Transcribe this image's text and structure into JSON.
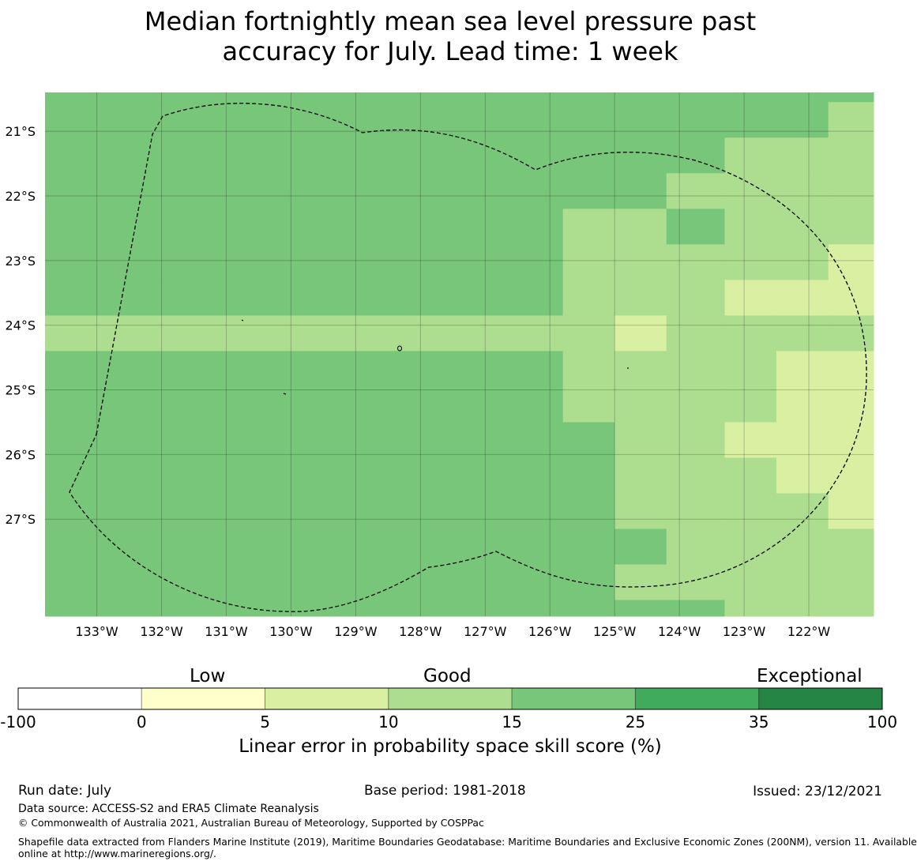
{
  "title": {
    "line1": "Median fortnightly mean sea level pressure past",
    "line2": "accuracy for July. Lead time: 1 week"
  },
  "map": {
    "lat_labels": [
      "21°S",
      "22°S",
      "23°S",
      "24°S",
      "25°S",
      "26°S",
      "27°S"
    ],
    "lon_labels": [
      "133°W",
      "132°W",
      "131°W",
      "130°W",
      "129°W",
      "128°W",
      "127°W",
      "126°W",
      "125°W",
      "124°W",
      "123°W",
      "122°W"
    ],
    "lon_range": [
      -133.8,
      -121.0
    ],
    "lat_range": [
      -28.5,
      -20.4
    ],
    "category_colors": {
      "A": "#78c679",
      "B": "#addd8e",
      "C": "#d9f0a3"
    },
    "grid_lon_edges": [
      -133.8,
      -125.8,
      -125.0,
      -124.2,
      -123.3,
      -122.5,
      -121.7,
      -121.0
    ],
    "grid_lat_edges": [
      -20.4,
      -20.55,
      -21.1,
      -21.65,
      -22.2,
      -22.75,
      -23.3,
      -23.85,
      -24.4,
      -24.95,
      -25.5,
      -26.05,
      -26.6,
      -27.15,
      -27.7,
      -28.25,
      -28.5
    ],
    "grid_categories": [
      [
        "A",
        "A",
        "A",
        "A",
        "A",
        "A",
        "A"
      ],
      [
        "A",
        "A",
        "A",
        "A",
        "A",
        "A",
        "B"
      ],
      [
        "A",
        "A",
        "A",
        "A",
        "B",
        "B",
        "B"
      ],
      [
        "A",
        "A",
        "A",
        "B",
        "B",
        "B",
        "B"
      ],
      [
        "A",
        "B",
        "B",
        "A",
        "B",
        "B",
        "B"
      ],
      [
        "A",
        "B",
        "B",
        "B",
        "B",
        "B",
        "C"
      ],
      [
        "A",
        "B",
        "B",
        "B",
        "C",
        "C",
        "C"
      ],
      [
        "B",
        "B",
        "C",
        "B",
        "B",
        "B",
        "B"
      ],
      [
        "A",
        "B",
        "B",
        "B",
        "B",
        "C",
        "C"
      ],
      [
        "A",
        "B",
        "B",
        "B",
        "B",
        "C",
        "C"
      ],
      [
        "A",
        "A",
        "B",
        "B",
        "C",
        "C",
        "C"
      ],
      [
        "A",
        "A",
        "B",
        "B",
        "B",
        "C",
        "C"
      ],
      [
        "A",
        "A",
        "B",
        "B",
        "B",
        "B",
        "C"
      ],
      [
        "A",
        "A",
        "A",
        "B",
        "B",
        "B",
        "B"
      ],
      [
        "A",
        "A",
        "B",
        "B",
        "B",
        "B",
        "B"
      ],
      [
        "A",
        "A",
        "A",
        "A",
        "B",
        "B",
        "B"
      ]
    ]
  },
  "colorbar": {
    "category_labels": [
      "Low",
      "Good",
      "Exceptional"
    ],
    "ticks": [
      "-100",
      "0",
      "5",
      "10",
      "15",
      "25",
      "35",
      "100"
    ],
    "colors": [
      "#ffffff",
      "#ffffcc",
      "#d9f0a3",
      "#addd8e",
      "#78c679",
      "#41ab5d",
      "#238443"
    ],
    "label": "Linear error in probability space skill score (%)"
  },
  "footer": {
    "run_date": "Run date: July",
    "base_period": "Base period: 1981-2018",
    "issued": "Issued: 23/12/2021",
    "data_source": "Data source: ACCESS-S2 and ERA5 Climate Reanalysis",
    "copyright": "© Commonwealth of Australia 2021, Australian Bureau of Meteorology, Supported by COSPPac",
    "shapefile_line1": "Shapefile data extracted from Flanders Marine Institute (2019), Maritime Boundaries Geodatabase: Maritime Boundaries and Exclusive Economic Zones (200NM), version 11. Available",
    "shapefile_line2": "online at http://www.marineregions.org/."
  }
}
